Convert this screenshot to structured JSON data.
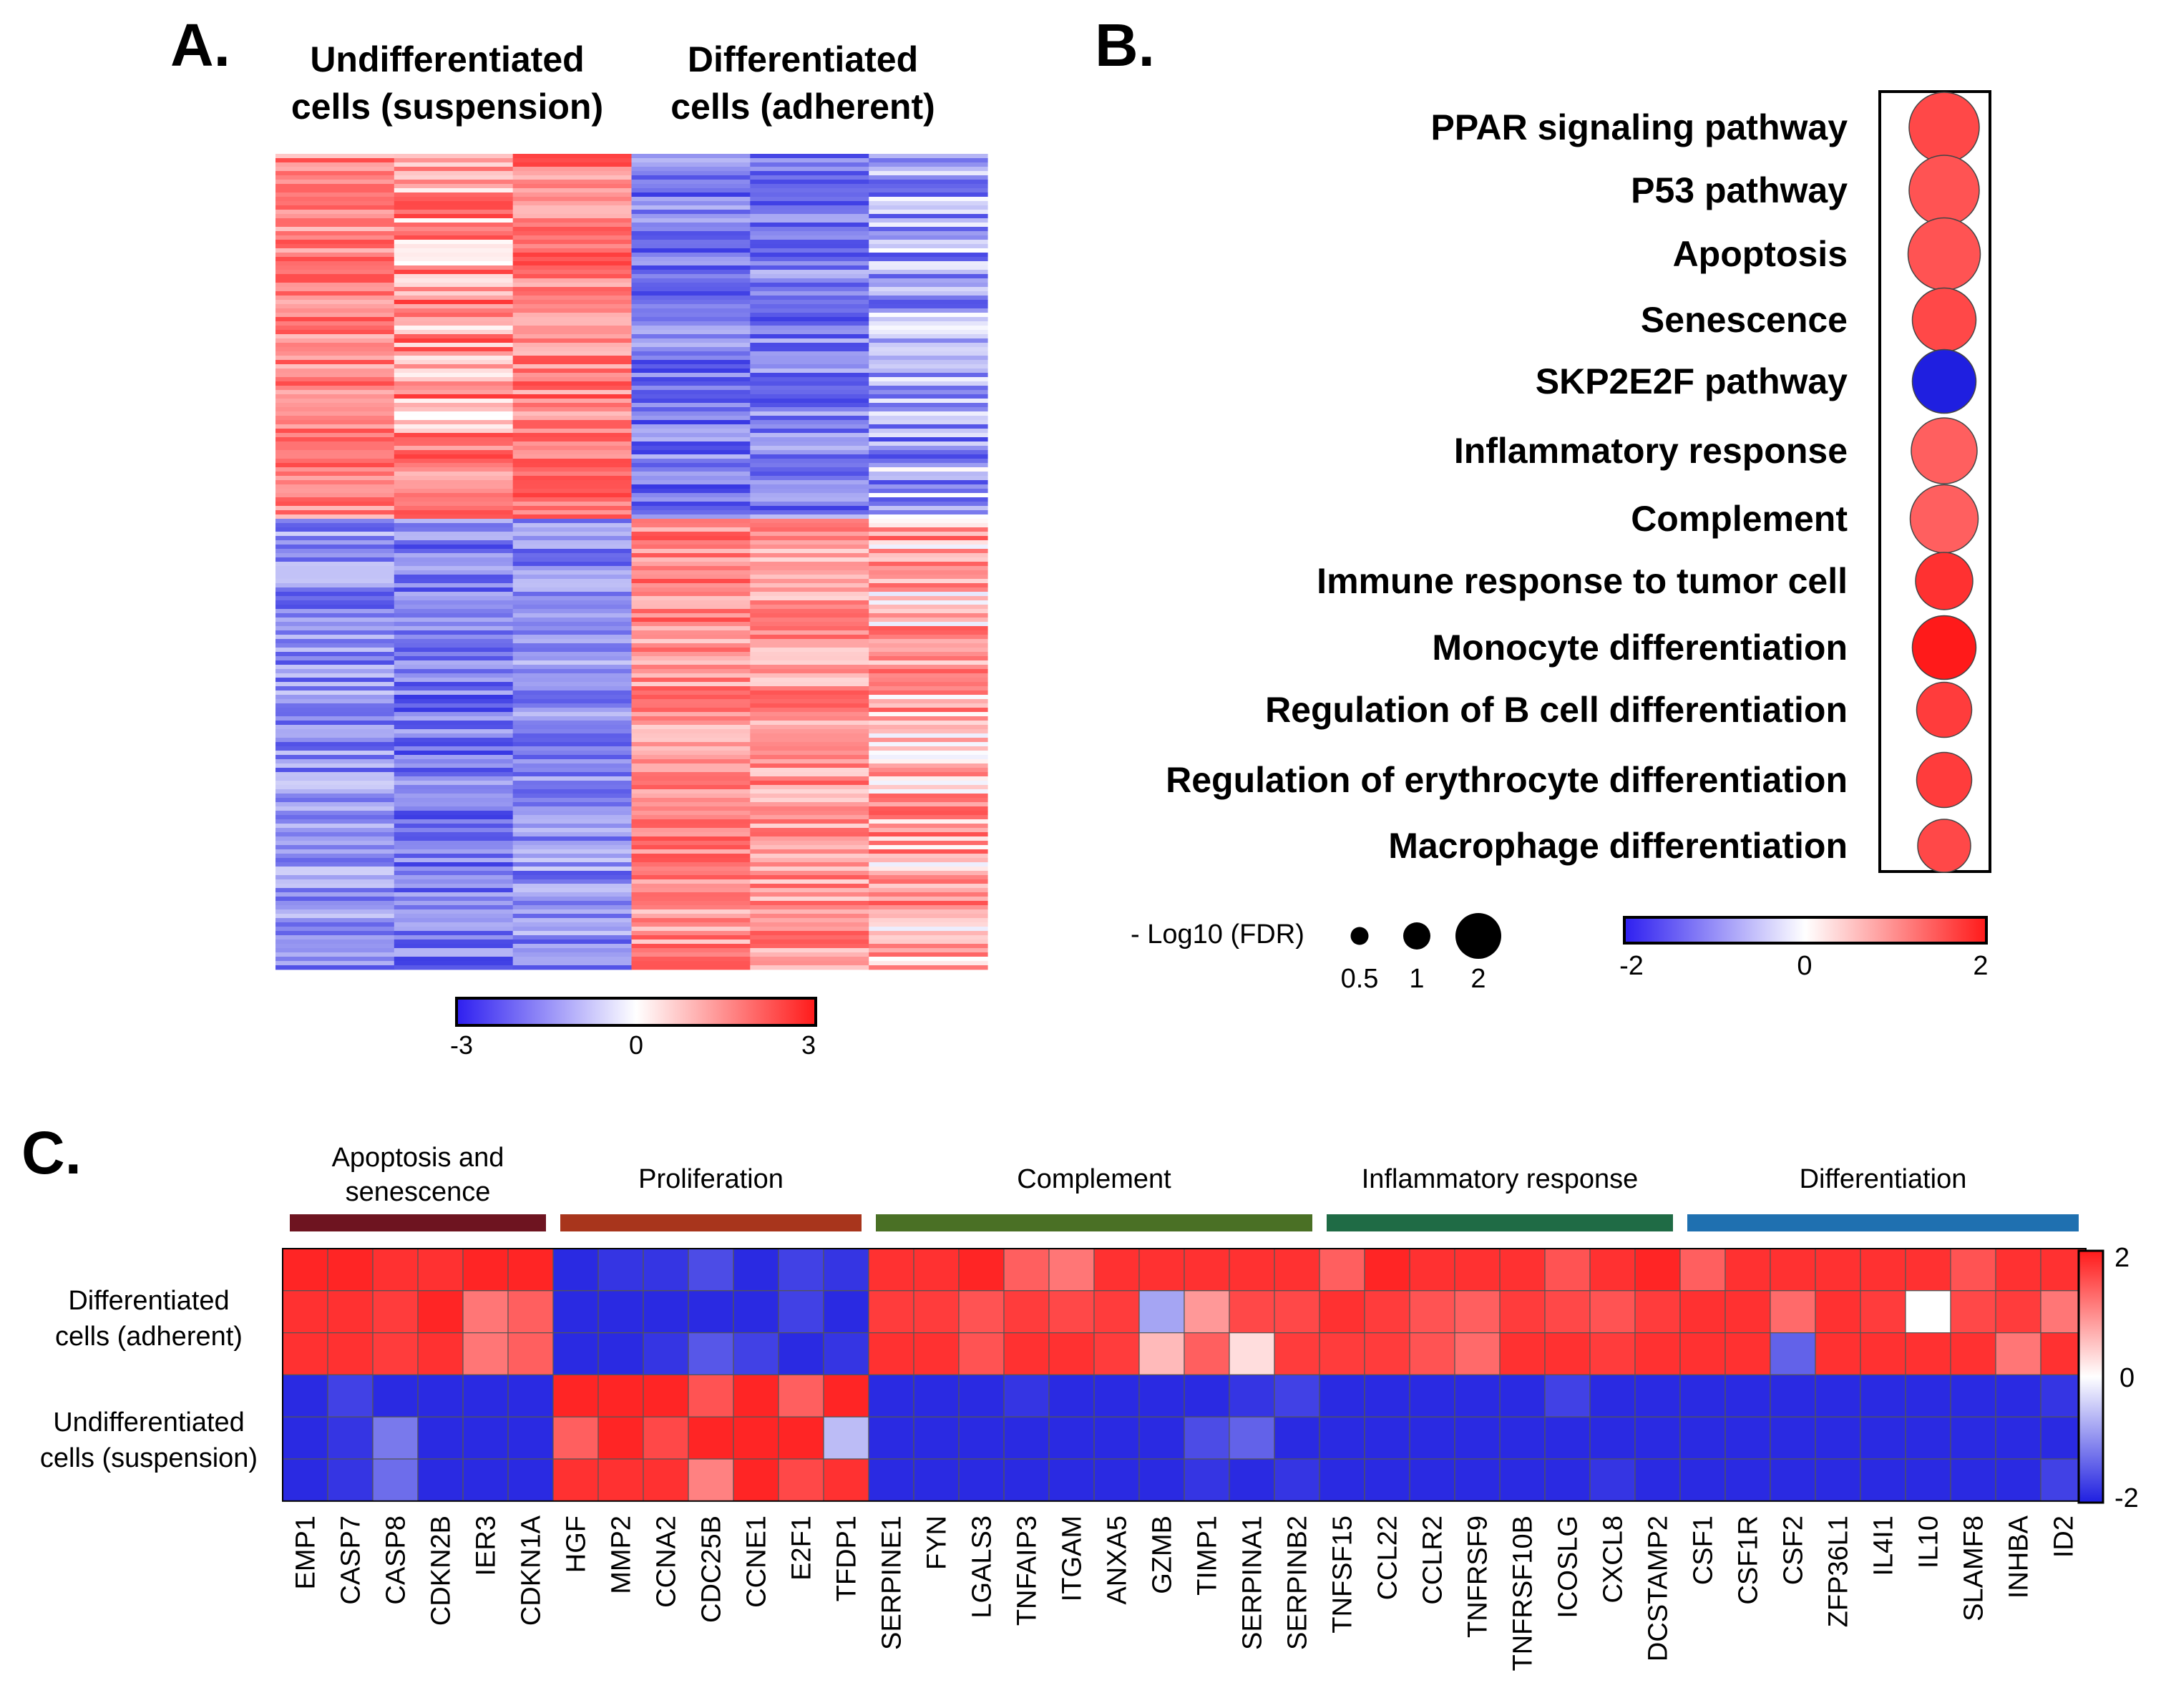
{
  "colors": {
    "low": "#1f1fe0",
    "mid": "#ffffff",
    "high": "#ff1a1a",
    "group_apoptosis": "#6e1420",
    "group_proliferation": "#a8351c",
    "group_complement": "#4a7025",
    "group_inflammatory": "#1f6b45",
    "group_differentiation": "#1f70b0"
  },
  "chart_data": [
    {
      "panel": "A.",
      "type": "heatmap",
      "column_groups": [
        {
          "label_line1": "Undifferentiated",
          "label_line2": "cells (suspension)"
        },
        {
          "label_line1": "Differentiated",
          "label_line2": "cells (adherent)"
        }
      ],
      "n_columns": 6,
      "column_levels": {
        "upper_block": [
          1.6,
          1.3,
          1.7,
          -1.8,
          -1.7,
          -1.2
        ],
        "lower_block": [
          -1.5,
          -1.8,
          -1.5,
          1.5,
          1.4,
          1.0
        ]
      },
      "colorbar": {
        "min": -3,
        "max": 3,
        "ticks": [
          "-3",
          "0",
          "3"
        ]
      }
    },
    {
      "panel": "B.",
      "type": "scatter",
      "pathways": [
        {
          "name": "PPAR signaling pathway",
          "score": 1.6,
          "neg_log10_fdr": 1.8
        },
        {
          "name": "P53 pathway",
          "score": 1.5,
          "neg_log10_fdr": 1.8
        },
        {
          "name": "Apoptosis",
          "score": 1.5,
          "neg_log10_fdr": 1.9
        },
        {
          "name": "Senescence",
          "score": 1.6,
          "neg_log10_fdr": 1.5
        },
        {
          "name": "SKP2E2F pathway",
          "score": -2.0,
          "neg_log10_fdr": 1.5
        },
        {
          "name": "Inflammatory response",
          "score": 1.4,
          "neg_log10_fdr": 1.6
        },
        {
          "name": "Complement",
          "score": 1.4,
          "neg_log10_fdr": 1.7
        },
        {
          "name": "Immune response to tumor cell",
          "score": 1.8,
          "neg_log10_fdr": 1.2
        },
        {
          "name": "Monocyte differentiation",
          "score": 2.0,
          "neg_log10_fdr": 1.5
        },
        {
          "name": "Regulation of B cell differentiation",
          "score": 1.7,
          "neg_log10_fdr": 1.1
        },
        {
          "name": "Regulation of erythrocyte differentiation",
          "score": 1.7,
          "neg_log10_fdr": 1.1
        },
        {
          "name": "Macrophage differentiation",
          "score": 1.6,
          "neg_log10_fdr": 1.0
        }
      ],
      "size_legend": {
        "title": "- Log10 (FDR)",
        "values": [
          0.5,
          1,
          2
        ],
        "labels": [
          "0.5",
          "1",
          "2"
        ]
      },
      "colorbar": {
        "min": -2,
        "max": 2,
        "ticks": [
          "-2",
          "0",
          "2"
        ]
      }
    },
    {
      "panel": "C.",
      "type": "heatmap",
      "groups": [
        {
          "label_line1": "Apoptosis and",
          "label_line2": "senescence",
          "color": "#6e1420",
          "start": 0,
          "count": 6
        },
        {
          "label_line1": "Proliferation",
          "label_line2": "",
          "color": "#a8351c",
          "start": 6,
          "count": 7
        },
        {
          "label_line1": "Complement",
          "label_line2": "",
          "color": "#4a7025",
          "start": 13,
          "count": 10
        },
        {
          "label_line1": "Inflammatory response",
          "label_line2": "",
          "color": "#1f6b45",
          "start": 23,
          "count": 8
        },
        {
          "label_line1": "Differentiation",
          "label_line2": "",
          "color": "#1f70b0",
          "start": 31,
          "count": 9
        }
      ],
      "genes": [
        "EMP1",
        "CASP7",
        "CASP8",
        "CDKN2B",
        "IER3",
        "CDKN1A",
        "HGF",
        "MMP2",
        "CCNA2",
        "CDC25B",
        "CCNE1",
        "E2F1",
        "TFDP1",
        "SERPINE1",
        "FYN",
        "LGALS3",
        "TNFAIP3",
        "ITGAM",
        "ANXA5",
        "GZMB",
        "TIMP1",
        "SERPINA1",
        "SERPINB2",
        "TNFSF15",
        "CCL22",
        "CCLR2",
        "TNFRSF9",
        "TNFRSF10B",
        "ICOSLG",
        "CXCL8",
        "DCSTAMP2",
        "CSF1",
        "CSF1R",
        "CSF2",
        "ZFP36L1",
        "IL4I1",
        "IL10",
        "SLAMF8",
        "INHBA",
        "ID2"
      ],
      "row_groups": [
        {
          "label_line1": "Differentiated",
          "label_line2": "cells (adherent)"
        },
        {
          "label_line1": "Undifferentiated",
          "label_line2": "cells (suspension)"
        }
      ],
      "matrix": [
        [
          1.9,
          1.9,
          1.8,
          1.8,
          1.9,
          1.9,
          -1.9,
          -1.8,
          -1.8,
          -1.6,
          -1.9,
          -1.7,
          -1.8,
          1.8,
          1.8,
          1.9,
          1.4,
          1.2,
          1.8,
          1.8,
          1.8,
          1.8,
          1.8,
          1.4,
          1.9,
          1.8,
          1.8,
          1.8,
          1.5,
          1.8,
          1.9,
          1.4,
          1.8,
          1.8,
          1.8,
          1.8,
          1.8,
          1.5,
          1.8,
          1.8
        ],
        [
          1.8,
          1.8,
          1.7,
          1.9,
          1.2,
          1.4,
          -1.9,
          -1.9,
          -1.9,
          -1.9,
          -1.9,
          -1.7,
          -1.9,
          1.7,
          1.7,
          1.5,
          1.7,
          1.6,
          1.7,
          -0.8,
          0.9,
          1.6,
          1.6,
          1.8,
          1.7,
          1.5,
          1.4,
          1.7,
          1.6,
          1.5,
          1.7,
          1.8,
          1.8,
          1.3,
          1.8,
          1.7,
          0.0,
          1.6,
          1.7,
          1.2
        ],
        [
          1.8,
          1.8,
          1.7,
          1.8,
          1.2,
          1.4,
          -1.9,
          -1.9,
          -1.8,
          -1.5,
          -1.7,
          -1.9,
          -1.8,
          1.8,
          1.8,
          1.5,
          1.8,
          1.8,
          1.7,
          0.6,
          1.4,
          0.3,
          1.7,
          1.7,
          1.7,
          1.5,
          1.3,
          1.8,
          1.8,
          1.7,
          1.8,
          1.8,
          1.8,
          -1.4,
          1.8,
          1.8,
          1.8,
          1.8,
          1.2,
          1.8
        ],
        [
          -1.9,
          -1.7,
          -1.9,
          -1.9,
          -1.9,
          -1.9,
          1.9,
          1.9,
          1.9,
          1.5,
          1.9,
          1.4,
          1.9,
          -1.9,
          -1.9,
          -1.9,
          -1.8,
          -1.9,
          -1.9,
          -1.9,
          -1.9,
          -1.8,
          -1.7,
          -1.9,
          -1.9,
          -1.9,
          -1.9,
          -1.9,
          -1.7,
          -1.9,
          -1.9,
          -1.9,
          -1.9,
          -1.9,
          -1.9,
          -1.9,
          -1.9,
          -1.9,
          -1.9,
          -1.8
        ],
        [
          -1.9,
          -1.8,
          -1.2,
          -1.9,
          -1.9,
          -1.9,
          1.4,
          1.9,
          1.6,
          1.9,
          1.9,
          1.9,
          -0.6,
          -1.9,
          -1.9,
          -1.9,
          -1.9,
          -1.9,
          -1.9,
          -1.9,
          -1.6,
          -1.4,
          -1.9,
          -1.9,
          -1.9,
          -1.9,
          -1.9,
          -1.9,
          -1.9,
          -1.9,
          -1.9,
          -1.9,
          -1.9,
          -1.9,
          -1.9,
          -1.9,
          -1.9,
          -1.9,
          -1.9,
          -1.9
        ],
        [
          -1.9,
          -1.8,
          -1.3,
          -1.9,
          -1.9,
          -1.9,
          1.8,
          1.8,
          1.8,
          1.1,
          1.9,
          1.6,
          1.8,
          -1.9,
          -1.9,
          -1.9,
          -1.9,
          -1.9,
          -1.9,
          -1.9,
          -1.8,
          -1.9,
          -1.8,
          -1.9,
          -1.9,
          -1.9,
          -1.9,
          -1.9,
          -1.9,
          -1.8,
          -1.9,
          -1.9,
          -1.9,
          -1.9,
          -1.9,
          -1.9,
          -1.9,
          -1.9,
          -1.9,
          -1.7
        ]
      ],
      "colorbar": {
        "min": -2,
        "max": 2,
        "ticks": [
          "2",
          "0",
          "-2"
        ]
      }
    }
  ]
}
